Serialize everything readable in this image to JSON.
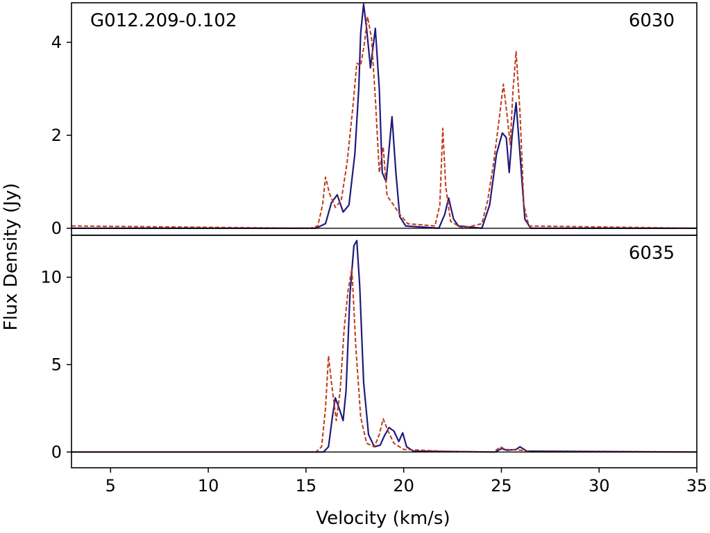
{
  "chart_data": {
    "type": "line",
    "xlabel": "Velocity (km/s)",
    "ylabel": "Flux Density (Jy)",
    "xlim": [
      3,
      35
    ],
    "x_ticks": [
      5,
      10,
      15,
      20,
      25,
      30,
      35
    ],
    "grid": false,
    "colors": {
      "solid": "#1f1a7a",
      "dashed": "#c0391b"
    },
    "panels": [
      {
        "source_label": "G012.209-0.102",
        "frequency_label": "6030",
        "ylim": [
          -0.15,
          4.85
        ],
        "y_ticks": [
          0,
          2,
          4
        ],
        "series": [
          {
            "style": "solid",
            "points": [
              [
                3,
                0.0
              ],
              [
                14.8,
                0.0
              ],
              [
                15.5,
                0.0
              ],
              [
                16.0,
                0.1
              ],
              [
                16.3,
                0.55
              ],
              [
                16.6,
                0.72
              ],
              [
                16.9,
                0.35
              ],
              [
                17.2,
                0.5
              ],
              [
                17.5,
                1.6
              ],
              [
                17.7,
                3.0
              ],
              [
                17.8,
                4.2
              ],
              [
                17.95,
                4.82
              ],
              [
                18.1,
                4.3
              ],
              [
                18.3,
                3.45
              ],
              [
                18.55,
                4.3
              ],
              [
                18.75,
                3.0
              ],
              [
                18.9,
                1.2
              ],
              [
                19.1,
                1.0
              ],
              [
                19.4,
                2.4
              ],
              [
                19.6,
                1.2
              ],
              [
                19.8,
                0.25
              ],
              [
                20.1,
                0.05
              ],
              [
                21.8,
                0.0
              ],
              [
                22.1,
                0.3
              ],
              [
                22.3,
                0.65
              ],
              [
                22.55,
                0.2
              ],
              [
                22.8,
                0.05
              ],
              [
                24.0,
                0.0
              ],
              [
                24.4,
                0.5
              ],
              [
                24.75,
                1.6
              ],
              [
                25.05,
                2.05
              ],
              [
                25.25,
                1.95
              ],
              [
                25.4,
                1.2
              ],
              [
                25.55,
                2.0
              ],
              [
                25.75,
                2.7
              ],
              [
                25.95,
                1.6
              ],
              [
                26.2,
                0.2
              ],
              [
                26.5,
                0.0
              ],
              [
                35,
                0.0
              ]
            ]
          },
          {
            "style": "dashed",
            "points": [
              [
                3,
                0.05
              ],
              [
                15.2,
                0.0
              ],
              [
                15.6,
                0.05
              ],
              [
                15.85,
                0.5
              ],
              [
                16.0,
                1.1
              ],
              [
                16.2,
                0.75
              ],
              [
                16.5,
                0.45
              ],
              [
                16.8,
                0.6
              ],
              [
                17.1,
                1.4
              ],
              [
                17.4,
                2.6
              ],
              [
                17.6,
                3.55
              ],
              [
                17.8,
                3.5
              ],
              [
                18.0,
                4.0
              ],
              [
                18.15,
                4.55
              ],
              [
                18.35,
                4.1
              ],
              [
                18.55,
                2.8
              ],
              [
                18.75,
                1.2
              ],
              [
                18.95,
                1.75
              ],
              [
                19.15,
                0.7
              ],
              [
                19.4,
                0.55
              ],
              [
                19.8,
                0.3
              ],
              [
                20.2,
                0.1
              ],
              [
                21.6,
                0.05
              ],
              [
                21.85,
                0.5
              ],
              [
                22.0,
                2.15
              ],
              [
                22.15,
                0.9
              ],
              [
                22.4,
                0.15
              ],
              [
                23.0,
                0.0
              ],
              [
                24.0,
                0.1
              ],
              [
                24.3,
                0.6
              ],
              [
                24.6,
                1.4
              ],
              [
                24.9,
                2.4
              ],
              [
                25.1,
                3.1
              ],
              [
                25.3,
                2.4
              ],
              [
                25.45,
                1.8
              ],
              [
                25.6,
                3.0
              ],
              [
                25.75,
                3.8
              ],
              [
                25.95,
                2.5
              ],
              [
                26.15,
                0.5
              ],
              [
                26.4,
                0.05
              ],
              [
                35,
                0.0
              ]
            ]
          }
        ]
      },
      {
        "source_label": "",
        "frequency_label": "6035",
        "ylim": [
          -0.9,
          12.4
        ],
        "y_ticks": [
          0,
          5,
          10
        ],
        "series": [
          {
            "style": "solid",
            "points": [
              [
                3,
                0.0
              ],
              [
                15.9,
                0.0
              ],
              [
                16.15,
                0.3
              ],
              [
                16.35,
                2.0
              ],
              [
                16.5,
                3.1
              ],
              [
                16.7,
                2.5
              ],
              [
                16.9,
                1.8
              ],
              [
                17.05,
                3.5
              ],
              [
                17.25,
                9.0
              ],
              [
                17.45,
                11.8
              ],
              [
                17.6,
                12.1
              ],
              [
                17.75,
                9.5
              ],
              [
                17.95,
                4.0
              ],
              [
                18.2,
                1.0
              ],
              [
                18.5,
                0.3
              ],
              [
                18.8,
                0.4
              ],
              [
                19.0,
                0.9
              ],
              [
                19.25,
                1.4
              ],
              [
                19.5,
                1.2
              ],
              [
                19.75,
                0.6
              ],
              [
                19.95,
                1.1
              ],
              [
                20.15,
                0.3
              ],
              [
                20.5,
                0.05
              ],
              [
                24.7,
                0.0
              ],
              [
                25.0,
                0.2
              ],
              [
                25.3,
                0.1
              ],
              [
                25.75,
                0.15
              ],
              [
                25.95,
                0.3
              ],
              [
                26.3,
                0.05
              ],
              [
                35,
                0.0
              ]
            ]
          },
          {
            "style": "dashed",
            "points": [
              [
                3,
                0.0
              ],
              [
                15.5,
                0.0
              ],
              [
                15.8,
                0.3
              ],
              [
                16.0,
                2.5
              ],
              [
                16.15,
                5.5
              ],
              [
                16.3,
                4.0
              ],
              [
                16.55,
                1.8
              ],
              [
                16.75,
                3.5
              ],
              [
                16.95,
                7.0
              ],
              [
                17.15,
                9.2
              ],
              [
                17.35,
                10.5
              ],
              [
                17.55,
                6.0
              ],
              [
                17.8,
                2.0
              ],
              [
                18.1,
                0.5
              ],
              [
                18.5,
                0.3
              ],
              [
                18.75,
                1.0
              ],
              [
                18.95,
                1.9
              ],
              [
                19.2,
                1.2
              ],
              [
                19.5,
                0.5
              ],
              [
                20.0,
                0.15
              ],
              [
                21.0,
                0.1
              ],
              [
                22.0,
                0.05
              ],
              [
                24.6,
                0.0
              ],
              [
                24.95,
                0.3
              ],
              [
                25.2,
                0.15
              ],
              [
                26.0,
                0.1
              ],
              [
                26.5,
                0.0
              ],
              [
                35,
                0.0
              ]
            ]
          }
        ]
      }
    ]
  }
}
